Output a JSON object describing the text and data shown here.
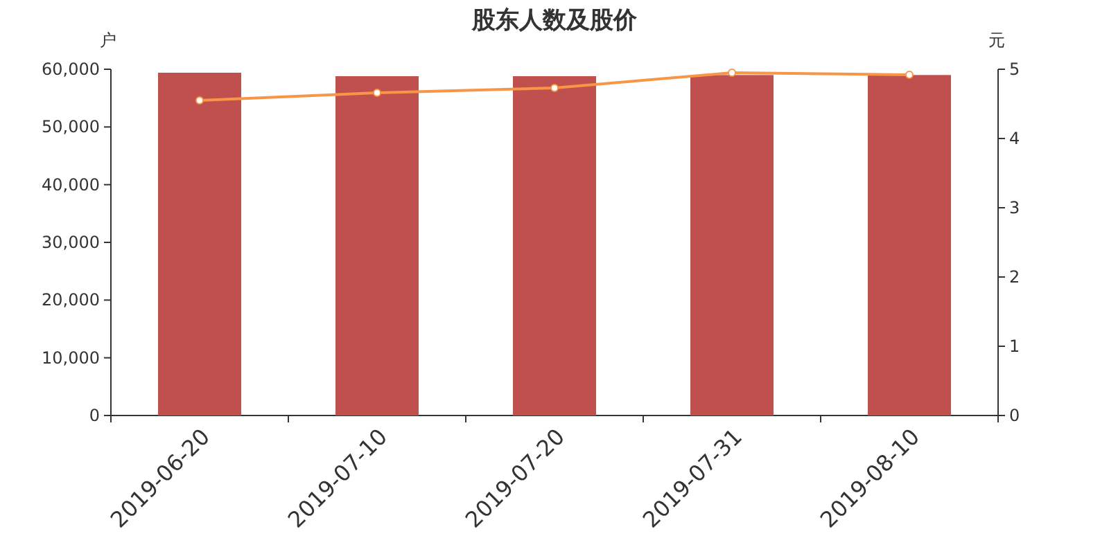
{
  "chart_data": {
    "type": "bar",
    "title": "股东人数及股价",
    "ylabel": "户",
    "y2label": "元",
    "categories": [
      "2019-06-20",
      "2019-07-10",
      "2019-07-20",
      "2019-07-31",
      "2019-08-10"
    ],
    "series": [
      {
        "color": "#c0504d",
        "values": [
          59400,
          58800,
          58800,
          59000,
          59000
        ]
      },
      {
        "type": "line",
        "axis": "y2",
        "color": "#f79646",
        "marker": "circle",
        "values": [
          4.55,
          4.66,
          4.73,
          4.95,
          4.92
        ]
      }
    ],
    "ylim": [
      0,
      60000
    ],
    "yticks": [
      {
        "value": 0,
        "label": "0"
      },
      {
        "value": 10000,
        "label": "10,000"
      },
      {
        "value": 20000,
        "label": "20,000"
      },
      {
        "value": 30000,
        "label": "30,000"
      },
      {
        "value": 40000,
        "label": "40,000"
      },
      {
        "value": 50000,
        "label": "50,000"
      },
      {
        "value": 60000,
        "label": "60,000"
      }
    ],
    "y2lim": [
      0,
      5
    ],
    "y2ticks": [
      0,
      1,
      2,
      3,
      4,
      5
    ],
    "grid": false
  }
}
